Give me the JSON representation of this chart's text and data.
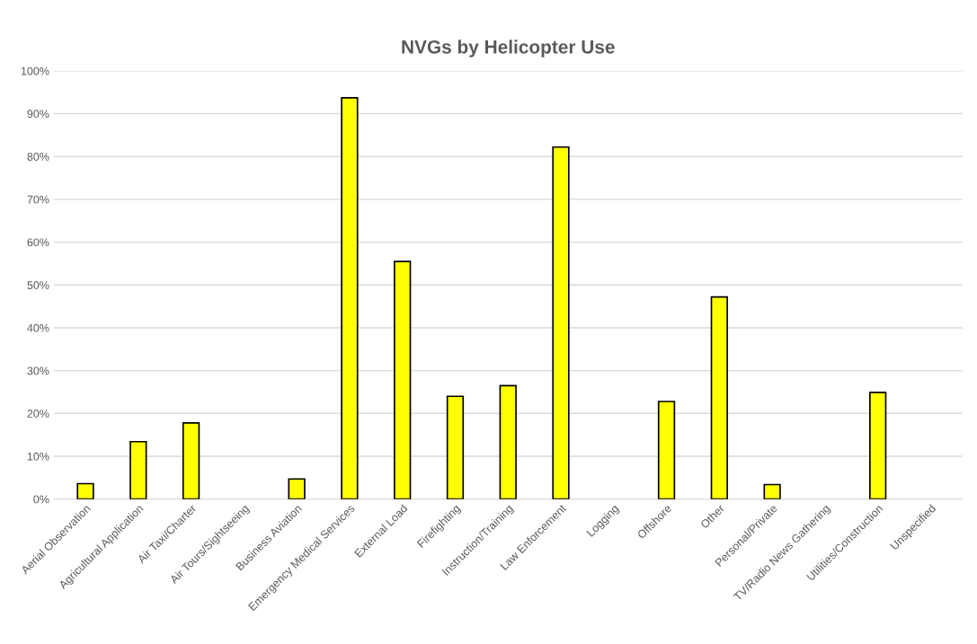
{
  "chart_data": {
    "type": "bar",
    "title": "NVGs by Helicopter Use",
    "categories": [
      "Aerial Observation",
      "Agricultural Application",
      "Air Taxi/Charter",
      "Air Tours/Sightseeing",
      "Business Aviation",
      "Emergency Medical Services",
      "External Load",
      "Firefighting",
      "Instruction/Training",
      "Law Enforcement",
      "Logging",
      "Offshore",
      "Other",
      "Personal/Private",
      "TV/Radio News Gathering",
      "Utilities/Construction",
      "Unspecified"
    ],
    "values": [
      3.6,
      13.4,
      17.8,
      0,
      4.7,
      93.7,
      55.5,
      24.0,
      26.5,
      82.2,
      0,
      22.8,
      47.2,
      3.4,
      0,
      24.9,
      0
    ],
    "color": "#ffff00",
    "ylim": [
      0,
      100
    ],
    "yticks": [
      {
        "value": 0,
        "label": "0%"
      },
      {
        "value": 10,
        "label": "10%"
      },
      {
        "value": 20,
        "label": "20%"
      },
      {
        "value": 30,
        "label": "30%"
      },
      {
        "value": 40,
        "label": "40%"
      },
      {
        "value": 50,
        "label": "50%"
      },
      {
        "value": 60,
        "label": "60%"
      },
      {
        "value": 70,
        "label": "70%"
      },
      {
        "value": 80,
        "label": "80%"
      },
      {
        "value": 90,
        "label": "90%"
      },
      {
        "value": 100,
        "label": "100%"
      }
    ],
    "grid": "y"
  }
}
